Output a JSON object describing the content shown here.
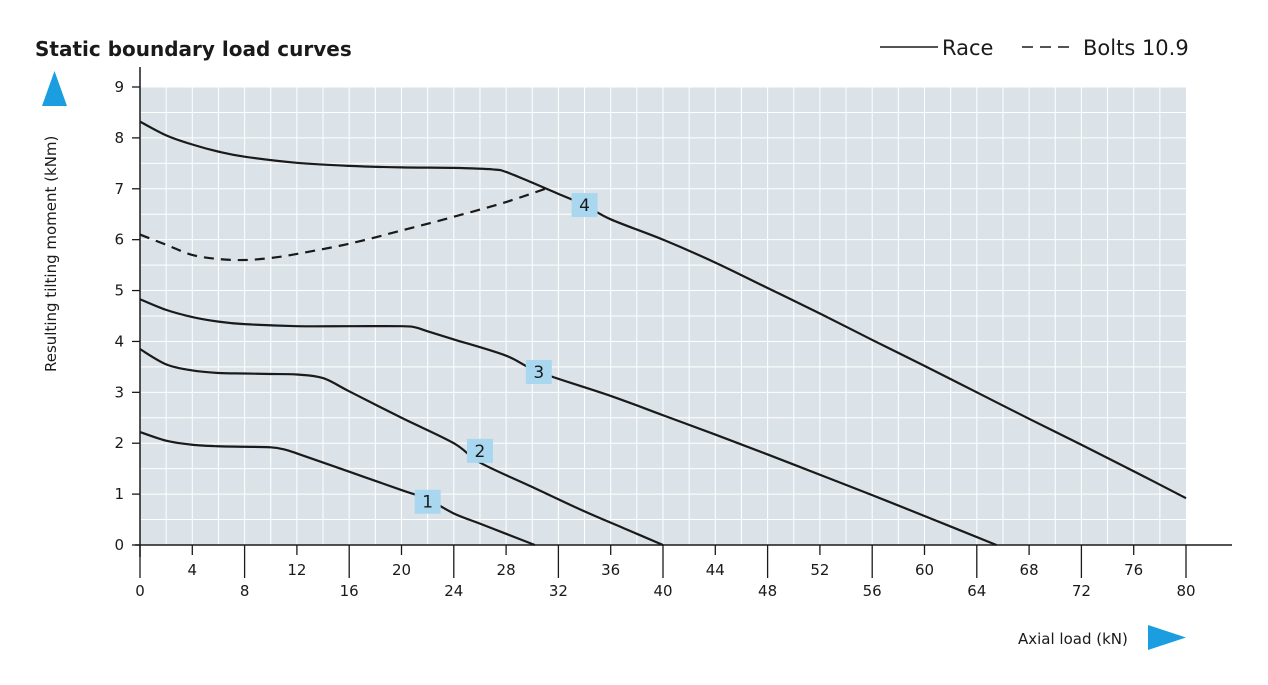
{
  "chart_data": {
    "type": "line",
    "title": "Static boundary load curves",
    "xlabel": "Axial load (kN)",
    "ylabel": "Resulting tilting moment (kNm)",
    "xlim": [
      0,
      80
    ],
    "ylim": [
      0,
      9
    ],
    "x_ticks_lower": [
      "0",
      "8",
      "16",
      "24",
      "32",
      "40",
      "48",
      "56",
      "64",
      "72",
      "80"
    ],
    "x_ticks_upper": [
      "4",
      "12",
      "20",
      "28",
      "36",
      "44",
      "52",
      "60",
      "68",
      "76"
    ],
    "y_ticks": [
      "0",
      "1",
      "2",
      "3",
      "4",
      "5",
      "6",
      "7",
      "8",
      "9"
    ],
    "grid": true,
    "grid_minor_step": [
      2,
      0.5
    ],
    "legend": {
      "placement": "top-right",
      "items": [
        {
          "label": "Race",
          "style": "solid"
        },
        {
          "label": "Bolts 10.9",
          "style": "dashed"
        }
      ]
    },
    "series": [
      {
        "name": "1",
        "style": "solid",
        "points": [
          [
            0,
            2.22
          ],
          [
            2,
            2.05
          ],
          [
            4,
            1.97
          ],
          [
            6,
            1.94
          ],
          [
            8,
            1.93
          ],
          [
            10,
            1.92
          ],
          [
            11,
            1.88
          ],
          [
            12,
            1.8
          ],
          [
            16,
            1.44
          ],
          [
            20,
            1.08
          ],
          [
            22,
            0.9
          ],
          [
            24,
            0.62
          ],
          [
            26,
            0.42
          ],
          [
            28,
            0.22
          ],
          [
            30.2,
            0
          ]
        ],
        "label_at": [
          22,
          0.85
        ]
      },
      {
        "name": "2",
        "style": "solid",
        "points": [
          [
            0,
            3.85
          ],
          [
            2,
            3.55
          ],
          [
            4,
            3.43
          ],
          [
            6,
            3.38
          ],
          [
            8,
            3.37
          ],
          [
            10,
            3.36
          ],
          [
            12,
            3.35
          ],
          [
            14,
            3.28
          ],
          [
            16,
            3.02
          ],
          [
            20,
            2.5
          ],
          [
            24,
            2.0
          ],
          [
            26,
            1.62
          ],
          [
            30,
            1.14
          ],
          [
            34,
            0.66
          ],
          [
            37,
            0.33
          ],
          [
            40,
            0
          ]
        ],
        "label_at": [
          26,
          1.85
        ]
      },
      {
        "name": "3",
        "style": "solid",
        "points": [
          [
            0,
            4.83
          ],
          [
            2,
            4.62
          ],
          [
            4,
            4.48
          ],
          [
            6,
            4.39
          ],
          [
            8,
            4.34
          ],
          [
            12,
            4.3
          ],
          [
            16,
            4.3
          ],
          [
            20,
            4.3
          ],
          [
            21,
            4.28
          ],
          [
            22,
            4.2
          ],
          [
            24,
            4.04
          ],
          [
            28,
            3.72
          ],
          [
            30.5,
            3.4
          ],
          [
            36,
            2.93
          ],
          [
            40,
            2.55
          ],
          [
            44,
            2.17
          ],
          [
            48,
            1.78
          ],
          [
            52,
            1.38
          ],
          [
            56,
            0.98
          ],
          [
            60,
            0.57
          ],
          [
            65.5,
            0
          ]
        ],
        "label_at": [
          30.5,
          3.4
        ]
      },
      {
        "name": "4",
        "style": "solid",
        "points": [
          [
            0,
            8.32
          ],
          [
            2,
            8.05
          ],
          [
            4,
            7.87
          ],
          [
            6,
            7.73
          ],
          [
            8,
            7.63
          ],
          [
            12,
            7.51
          ],
          [
            16,
            7.45
          ],
          [
            20,
            7.42
          ],
          [
            24,
            7.41
          ],
          [
            27,
            7.38
          ],
          [
            28,
            7.33
          ],
          [
            30,
            7.12
          ],
          [
            32,
            6.9
          ],
          [
            34,
            6.68
          ],
          [
            36,
            6.4
          ],
          [
            40,
            6.0
          ],
          [
            44,
            5.55
          ],
          [
            48,
            5.05
          ],
          [
            52,
            4.55
          ],
          [
            56,
            4.03
          ],
          [
            60,
            3.52
          ],
          [
            64,
            3.0
          ],
          [
            68,
            2.48
          ],
          [
            72,
            1.97
          ],
          [
            76,
            1.45
          ],
          [
            80,
            0.92
          ]
        ],
        "label_at": [
          34,
          6.68
        ]
      },
      {
        "name": "Bolts 10.9",
        "style": "dashed",
        "points": [
          [
            0,
            6.1
          ],
          [
            2,
            5.9
          ],
          [
            4,
            5.7
          ],
          [
            6,
            5.62
          ],
          [
            8,
            5.6
          ],
          [
            10,
            5.64
          ],
          [
            12,
            5.72
          ],
          [
            16,
            5.92
          ],
          [
            20,
            6.18
          ],
          [
            24,
            6.45
          ],
          [
            28,
            6.74
          ],
          [
            31,
            7.0
          ]
        ]
      }
    ],
    "curve_labels": [
      "1",
      "2",
      "3",
      "4"
    ],
    "colors": {
      "plot_background": "#dce3e8",
      "grid_line": "#ffffff",
      "line": "#1a1a1a",
      "label_box": "#a9d7ef",
      "axis_arrow": "#1a9ee0"
    }
  }
}
